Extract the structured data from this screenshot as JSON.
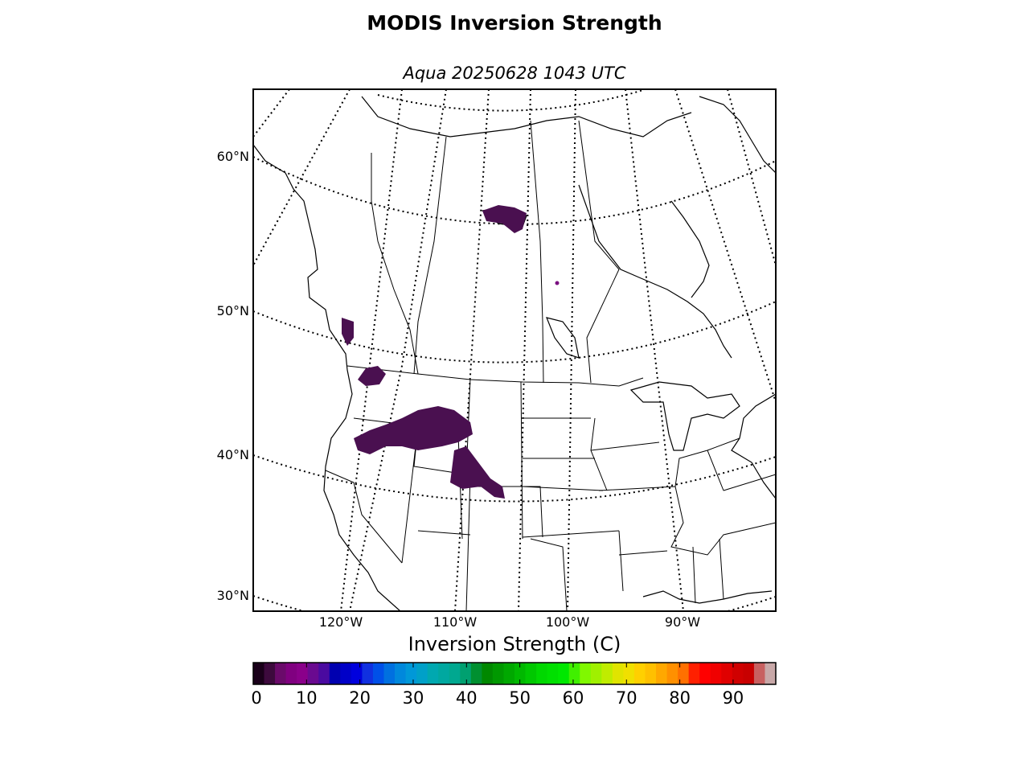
{
  "title": "MODIS Inversion Strength",
  "subtitle": "Aqua 20250628 1043 UTC",
  "map": {
    "lat_labels": [
      {
        "text": "60°N",
        "value": 60
      },
      {
        "text": "50°N",
        "value": 50
      },
      {
        "text": "40°N",
        "value": 40
      },
      {
        "text": "30°N",
        "value": 30
      }
    ],
    "lon_labels": [
      {
        "text": "120°W",
        "value": -120
      },
      {
        "text": "110°W",
        "value": -110
      },
      {
        "text": "100°W",
        "value": -100
      },
      {
        "text": "90°W",
        "value": -90
      }
    ],
    "inversion_regions": [
      "northern Saskatchewan / Alberta",
      "British Columbia coast",
      "Idaho / Oregon",
      "Utah / Wyoming / Colorado"
    ]
  },
  "colorbar": {
    "label": "Inversion Strength (C)",
    "min": 0,
    "max": 98,
    "ticks": [
      "0",
      "10",
      "20",
      "30",
      "40",
      "50",
      "60",
      "70",
      "80",
      "90"
    ],
    "tick_values": [
      0,
      10,
      20,
      30,
      40,
      50,
      60,
      70,
      80,
      90
    ],
    "colors": [
      "#1a001a",
      "#3d0a3d",
      "#6a0a6a",
      "#800080",
      "#8a008a",
      "#6a0a90",
      "#4a0aa0",
      "#0000b0",
      "#0000c8",
      "#0000dd",
      "#1030e0",
      "#0050e8",
      "#0070e0",
      "#0088dc",
      "#0098d8",
      "#00a0c8",
      "#00a8b0",
      "#00a8a0",
      "#00a890",
      "#00a070",
      "#009030",
      "#008800",
      "#009800",
      "#00a800",
      "#00b800",
      "#00c800",
      "#00d800",
      "#00e000",
      "#00e800",
      "#40f000",
      "#80f800",
      "#a0f000",
      "#c0ec00",
      "#e0e400",
      "#f0e000",
      "#ffd000",
      "#ffc000",
      "#ffa800",
      "#ff9000",
      "#ff7000",
      "#ff2000",
      "#ff0000",
      "#f00000",
      "#e00000",
      "#d00000",
      "#c80000",
      "#c86060",
      "#c8a8a8"
    ]
  }
}
